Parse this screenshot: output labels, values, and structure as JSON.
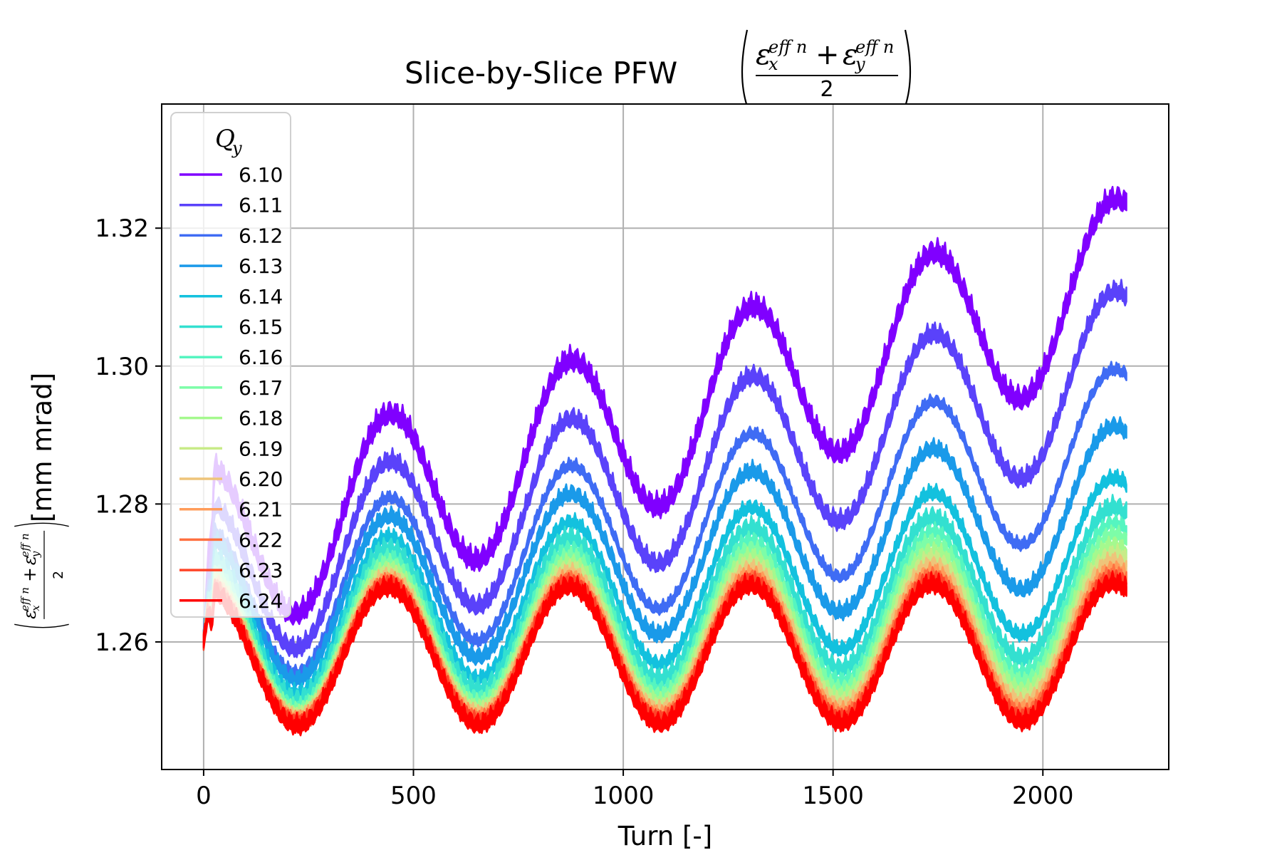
{
  "chart_data": {
    "type": "line",
    "title": "Slice-by-Slice PFW",
    "title_formula": {
      "symbol": "ε",
      "sub_x": "x",
      "sub_y": "y",
      "sup": "eff n",
      "plus": "+",
      "denominator": "2"
    },
    "xlabel": "Turn [-]",
    "ylabel_unit": "[mm mrad]",
    "xlim": [
      -100,
      2300
    ],
    "ylim": [
      1.2415,
      1.338
    ],
    "xticks": [
      "0",
      "500",
      "1000",
      "1500",
      "2000"
    ],
    "xtick_values": [
      0,
      500,
      1000,
      1500,
      2000
    ],
    "yticks": [
      "1.26",
      "1.28",
      "1.30",
      "1.32"
    ],
    "ytick_values": [
      1.26,
      1.28,
      1.3,
      1.32
    ],
    "grid": true,
    "legend": {
      "title": "Q",
      "title_sub": "y",
      "placement": "upper-left"
    },
    "model": {
      "description_period_turns": 432,
      "start_value": 1.26
    },
    "series": [
      {
        "name": "6.10",
        "color": "#8000ff",
        "minimum": 1.264,
        "drift": 0.031,
        "amplitude": 0.0125,
        "band": 0.0022
      },
      {
        "name": "6.11",
        "color": "#5a42fa",
        "minimum": 1.259,
        "drift": 0.0245,
        "amplitude": 0.012,
        "band": 0.0018
      },
      {
        "name": "6.12",
        "color": "#3f6cf4",
        "minimum": 1.2555,
        "drift": 0.0185,
        "amplitude": 0.0115,
        "band": 0.0012
      },
      {
        "name": "6.13",
        "color": "#1a9ae9",
        "minimum": 1.2545,
        "drift": 0.013,
        "amplitude": 0.011,
        "band": 0.0016
      },
      {
        "name": "6.14",
        "color": "#13c1de",
        "minimum": 1.2525,
        "drift": 0.0085,
        "amplitude": 0.0108,
        "band": 0.0014
      },
      {
        "name": "6.15",
        "color": "#33e0d0",
        "minimum": 1.2515,
        "drift": 0.006,
        "amplitude": 0.0106,
        "band": 0.0018
      },
      {
        "name": "6.16",
        "color": "#55f5c0",
        "minimum": 1.2505,
        "drift": 0.005,
        "amplitude": 0.0105,
        "band": 0.0014
      },
      {
        "name": "6.17",
        "color": "#7dfda8",
        "minimum": 1.25,
        "drift": 0.0042,
        "amplitude": 0.0104,
        "band": 0.0014
      },
      {
        "name": "6.18",
        "color": "#a4f98e",
        "minimum": 1.2495,
        "drift": 0.0035,
        "amplitude": 0.0103,
        "band": 0.0014
      },
      {
        "name": "6.19",
        "color": "#c8eb88",
        "minimum": 1.2492,
        "drift": 0.0028,
        "amplitude": 0.0102,
        "band": 0.0014
      },
      {
        "name": "6.20",
        "color": "#eec47a",
        "minimum": 1.249,
        "drift": 0.0022,
        "amplitude": 0.0101,
        "band": 0.0014
      },
      {
        "name": "6.21",
        "color": "#ff9c5a",
        "minimum": 1.2487,
        "drift": 0.0016,
        "amplitude": 0.01,
        "band": 0.0014
      },
      {
        "name": "6.22",
        "color": "#ff7040",
        "minimum": 1.2484,
        "drift": 0.0012,
        "amplitude": 0.01,
        "band": 0.0014
      },
      {
        "name": "6.23",
        "color": "#ff4428",
        "minimum": 1.2481,
        "drift": 0.0008,
        "amplitude": 0.01,
        "band": 0.0016
      },
      {
        "name": "6.24",
        "color": "#ff0000",
        "minimum": 1.2478,
        "drift": 0.0006,
        "amplitude": 0.01,
        "band": 0.0018
      }
    ]
  }
}
